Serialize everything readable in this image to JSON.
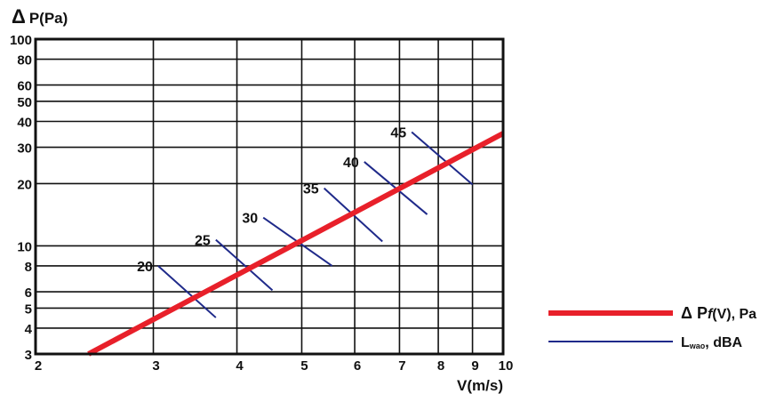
{
  "chart_data": {
    "type": "line",
    "xscale": "log",
    "yscale": "log",
    "xlim": [
      2,
      10
    ],
    "ylim": [
      3,
      100
    ],
    "x_ticks": [
      2,
      3,
      4,
      5,
      6,
      7,
      8,
      9,
      10
    ],
    "y_ticks": [
      3,
      4,
      5,
      6,
      8,
      10,
      20,
      30,
      40,
      50,
      60,
      80,
      100
    ],
    "x_tick_labels": [
      "2",
      "3",
      "4",
      "5",
      "6",
      "7",
      "8",
      "9",
      "10"
    ],
    "y_tick_labels": [
      "3",
      "4",
      "5",
      "6",
      "8",
      "10",
      "20",
      "30",
      "40",
      "50",
      "60",
      "80",
      "100"
    ],
    "xlabel": "V(m/s)",
    "ylabel_symbol": "Δ",
    "ylabel": "P(Pa)",
    "grid": true,
    "legend_position": "right",
    "series": [
      {
        "name_prefix": "Δ P",
        "name_italic": "f",
        "name_suffix": "(V), Pa",
        "color": "#e8202a",
        "kind": "pressure-curve",
        "points": [
          [
            2.4,
            3
          ],
          [
            10,
            35
          ]
        ]
      },
      {
        "name_main": "L",
        "name_sub": "wao",
        "name_suffix": ", dBA",
        "color": "#1f2a8a",
        "kind": "noise-isolines",
        "lines": [
          {
            "label": "20",
            "from": [
              3.05,
              8
            ],
            "to": [
              3.72,
              4.5
            ]
          },
          {
            "label": "25",
            "from": [
              3.72,
              10.7
            ],
            "to": [
              4.52,
              6.1
            ]
          },
          {
            "label": "30",
            "from": [
              4.38,
              13.7
            ],
            "to": [
              5.55,
              8
            ]
          },
          {
            "label": "35",
            "from": [
              5.4,
              19
            ],
            "to": [
              6.6,
              10.5
            ]
          },
          {
            "label": "40",
            "from": [
              6.2,
              25.5
            ],
            "to": [
              7.7,
              14.2
            ]
          },
          {
            "label": "45",
            "from": [
              7.3,
              35.5
            ],
            "to": [
              9.0,
              19.8
            ]
          }
        ]
      }
    ]
  }
}
